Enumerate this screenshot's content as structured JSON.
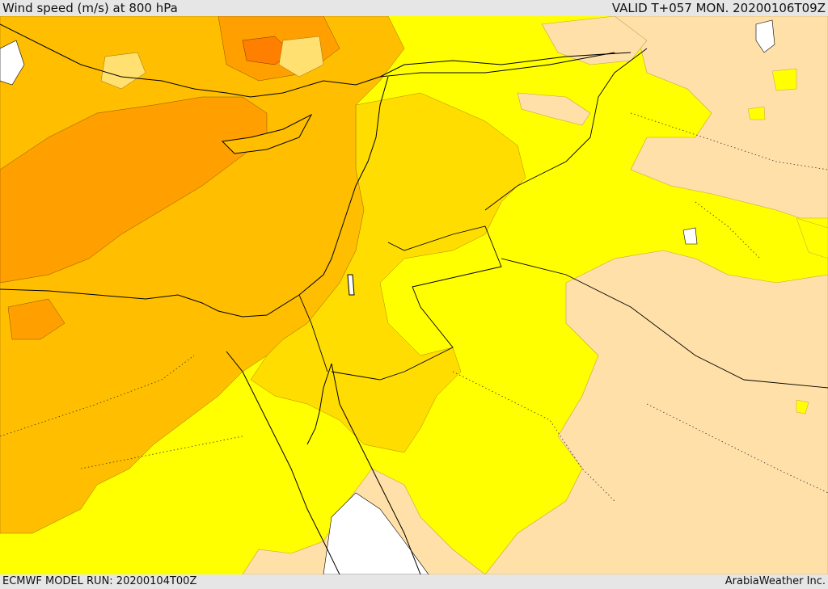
{
  "header": {
    "title": "Wind speed (m/s) at 800 hPa",
    "valid_time": "VALID T+057 MON. 20200106T09Z"
  },
  "footer": {
    "model_run": "ECMWF MODEL RUN: 20200104T00Z",
    "credit": "ArabiaWeather Inc."
  },
  "colors": {
    "background": "#e6e6e6",
    "calm": "#ffe0a8",
    "light": "#ffff00",
    "moderate": "#ffdd00",
    "fresh": "#ffbf00",
    "strong": "#ffa000",
    "very_strong": "#ff8000",
    "sea_white": "#ffffff",
    "coastline": "#000000"
  }
}
